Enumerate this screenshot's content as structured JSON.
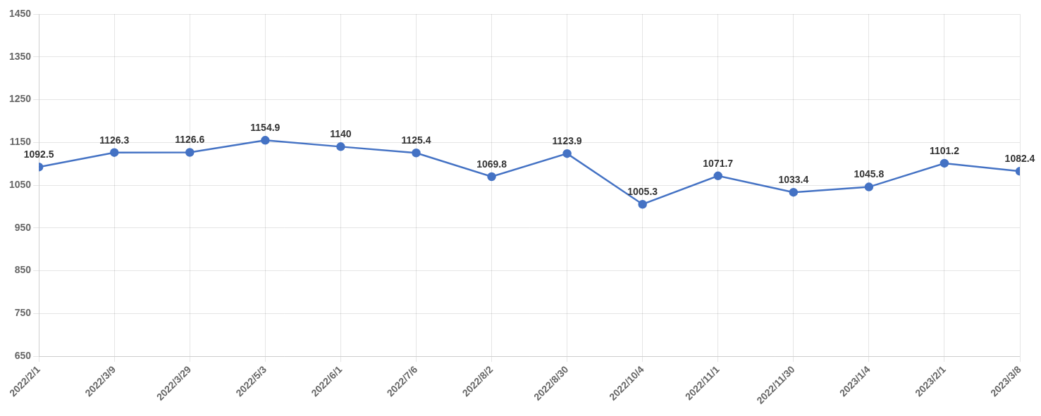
{
  "chart_data": {
    "type": "line",
    "categories": [
      "2022/2/1",
      "2022/3/9",
      "2022/3/29",
      "2022/5/3",
      "2022/6/1",
      "2022/7/6",
      "2022/8/2",
      "2022/8/30",
      "2022/10/4",
      "2022/11/1",
      "2022/11/30",
      "2023/1/4",
      "2023/2/1",
      "2023/3/8"
    ],
    "values": [
      1092.5,
      1126.3,
      1126.6,
      1154.9,
      1140.0,
      1125.4,
      1069.8,
      1123.9,
      1005.3,
      1071.7,
      1033.4,
      1045.8,
      1101.2,
      1082.4
    ],
    "color": "#4472C4",
    "marker": "circle",
    "ylim": [
      650,
      1450
    ],
    "yticks": [
      650,
      750,
      850,
      950,
      1050,
      1150,
      1250,
      1350,
      1450
    ],
    "grid": true,
    "data_labels": true
  }
}
